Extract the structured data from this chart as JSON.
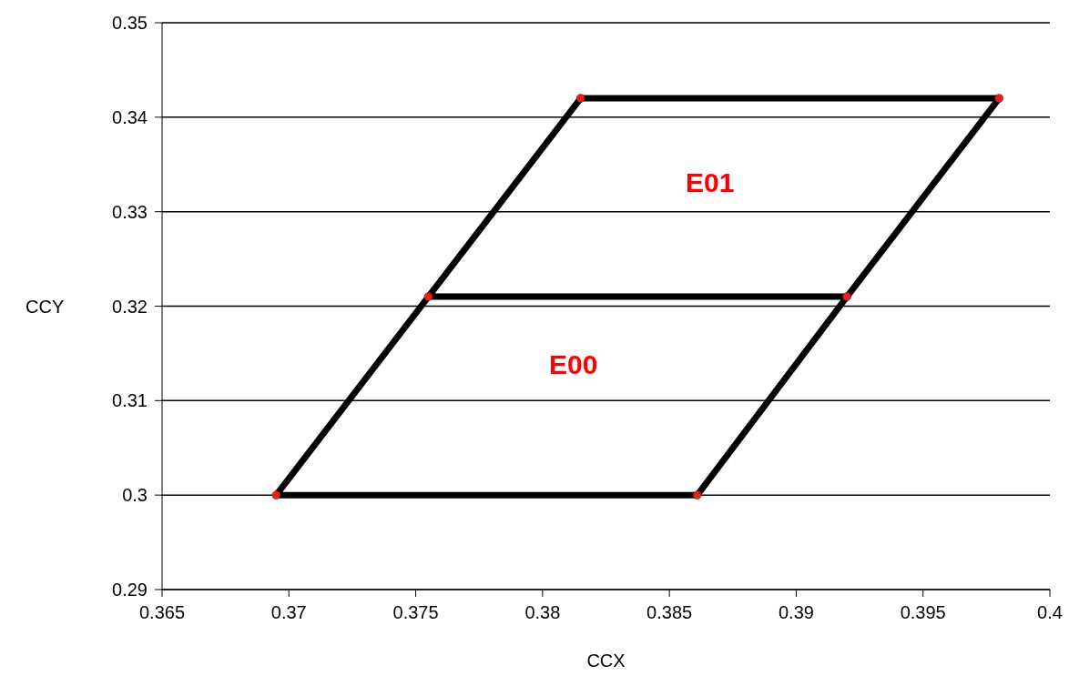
{
  "chart_data": {
    "type": "line",
    "xlabel": "CCX",
    "ylabel": "CCY",
    "xlim": [
      0.365,
      0.4
    ],
    "xticks": [
      0.365,
      0.37,
      0.375,
      0.38,
      0.385,
      0.39,
      0.395,
      0.4
    ],
    "ylim": [
      0.29,
      0.35
    ],
    "yticks": [
      0.29,
      0.3,
      0.31,
      0.32,
      0.33,
      0.34,
      0.35
    ],
    "grid": "y",
    "series": [
      {
        "color": "#000000",
        "x": [
          0.3755,
          0.3695,
          0.3861,
          0.392,
          0.3755,
          0.3815,
          0.398,
          0.392
        ],
        "values": [
          0.321,
          0.3,
          0.3,
          0.321,
          0.321,
          0.342,
          0.342,
          0.321
        ]
      },
      {
        "type": "scatter",
        "color": "#e8201c",
        "marker": "circle",
        "x": [
          0.3695,
          0.3861,
          0.3755,
          0.392,
          0.3815,
          0.398
        ],
        "values": [
          0.3,
          0.3,
          0.321,
          0.321,
          0.342,
          0.342
        ]
      }
    ],
    "annotations": [
      "E01",
      "E00"
    ]
  }
}
